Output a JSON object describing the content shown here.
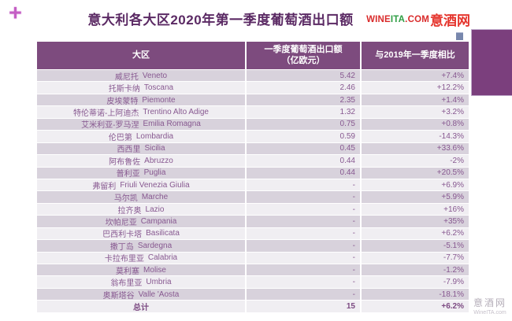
{
  "page": {
    "plus_glyph": "+",
    "title": "意大利各大区2020年第一季度葡萄酒出口额",
    "logo": {
      "part_wine": "WINE",
      "part_ita": "ITA",
      "part_com": ".COM",
      "part_cn": "意酒网"
    },
    "watermark": {
      "line1": "意酒网",
      "line2": "WineITA.com"
    }
  },
  "table_header": {
    "col1": "大区",
    "col2_line1": "一季度葡萄酒出口额",
    "col2_line2": "（亿欧元）",
    "col3": "与2019年一季度相比"
  },
  "colors": {
    "header_bg": "#7d4b7e",
    "row_dark": "#d8d2dc",
    "row_light": "#f0eef2",
    "cell_text": "#875890",
    "title_text": "#5b2a64",
    "logo_red": "#d92b2b",
    "logo_green": "#2e9e44",
    "plus_magenta": "#c45ec4",
    "deco_rect_purple": "#7b3f7d",
    "deco_square_blue": "#7887ad"
  },
  "chart_data": {
    "type": "table",
    "title": "意大利各大区2020年第一季度葡萄酒出口额",
    "columns": [
      "大区",
      "一季度葡萄酒出口额（亿欧元）",
      "与2019年一季度相比"
    ],
    "rows": [
      {
        "region_cn": "威尼托",
        "region_it": "Veneto",
        "export_value": "5.42",
        "yoy_change": "+7.4%"
      },
      {
        "region_cn": "托斯卡纳",
        "region_it": "Toscana",
        "export_value": "2.46",
        "yoy_change": "+12.2%"
      },
      {
        "region_cn": "皮埃蒙特",
        "region_it": "Piemonte",
        "export_value": "2.35",
        "yoy_change": "+1.4%"
      },
      {
        "region_cn": "特伦蒂诺-上阿迪杰",
        "region_it": "Trentino Alto Adige",
        "export_value": "1.32",
        "yoy_change": "+3.2%"
      },
      {
        "region_cn": "艾米利亚-罗马涅",
        "region_it": "Emilia Romagna",
        "export_value": "0.75",
        "yoy_change": "+0.8%"
      },
      {
        "region_cn": "伦巴第",
        "region_it": "Lombardia",
        "export_value": "0.59",
        "yoy_change": "-14.3%"
      },
      {
        "region_cn": "西西里",
        "region_it": "Sicilia",
        "export_value": "0.45",
        "yoy_change": "+33.6%"
      },
      {
        "region_cn": "阿布鲁佐",
        "region_it": "Abruzzo",
        "export_value": "0.44",
        "yoy_change": "-2%"
      },
      {
        "region_cn": "普利亚",
        "region_it": "Puglia",
        "export_value": "0.44",
        "yoy_change": "+20.5%"
      },
      {
        "region_cn": "弗留利",
        "region_it": "Friuli Venezia Giulia",
        "export_value": "-",
        "yoy_change": "+6.9%"
      },
      {
        "region_cn": "马尔凯",
        "region_it": "Marche",
        "export_value": "-",
        "yoy_change": "+5.9%"
      },
      {
        "region_cn": "拉齐奥",
        "region_it": "Lazio",
        "export_value": "-",
        "yoy_change": "+16%"
      },
      {
        "region_cn": "坎帕尼亚",
        "region_it": "Campania",
        "export_value": "-",
        "yoy_change": "+35%"
      },
      {
        "region_cn": "巴西利卡塔",
        "region_it": "Basilicata",
        "export_value": "-",
        "yoy_change": "+6.2%"
      },
      {
        "region_cn": "撒丁岛",
        "region_it": "Sardegna",
        "export_value": "-",
        "yoy_change": "-5.1%"
      },
      {
        "region_cn": "卡拉布里亚",
        "region_it": "Calabria",
        "export_value": "-",
        "yoy_change": "-7.7%"
      },
      {
        "region_cn": "莫利塞",
        "region_it": "Molise",
        "export_value": "-",
        "yoy_change": "-1.2%"
      },
      {
        "region_cn": "翁布里亚",
        "region_it": "Umbria",
        "export_value": "-",
        "yoy_change": "-7.9%"
      },
      {
        "region_cn": "奥斯塔谷",
        "region_it": "Valle 'Aosta",
        "export_value": "-",
        "yoy_change": "-18.1%"
      },
      {
        "region_cn": "总计",
        "region_it": "",
        "export_value": "15",
        "yoy_change": "+6.2%",
        "is_total": true
      }
    ]
  }
}
